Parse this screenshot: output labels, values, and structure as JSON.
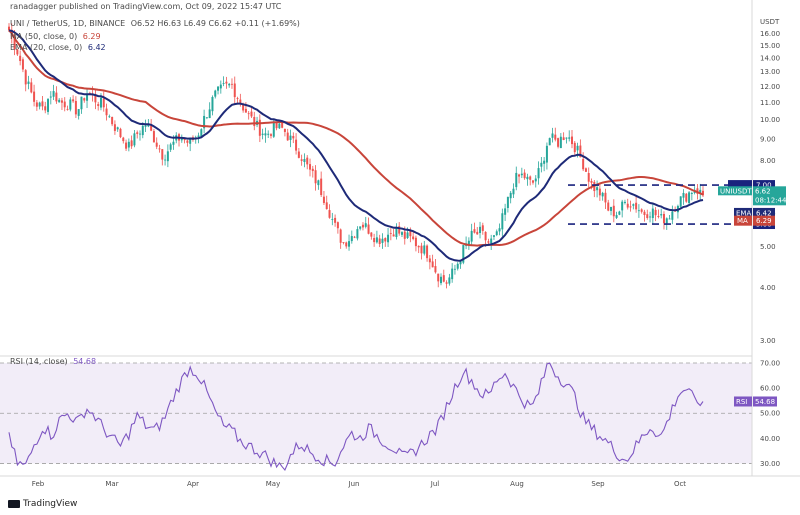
{
  "header": {
    "published": "ranadagger published on TradingView.com, Oct 09, 2022 15:47 UTC",
    "title": "UNI / TetherUS, 1D, BINANCE",
    "ohlc": "O6.52 H6.63 L6.49 C6.62 +0.11 (+1.69%)",
    "ma_label": "MA (50, close, 0)",
    "ma_value": "6.29",
    "ema_label": "EMA (20, close, 0)",
    "ema_value": "6.42",
    "rsi_label": "RSI (14, close)",
    "rsi_value": "54.68"
  },
  "logo": {
    "text": "TradingView"
  },
  "colors": {
    "up": "#26a69a",
    "down": "#ef5350",
    "ema": "#1e2a78",
    "ma": "#c8453a",
    "rsi": "#7e57c2",
    "level": "#1a237e"
  },
  "chart_data": [
    {
      "type": "candlestick",
      "title": "UNI / TetherUS, 1D, BINANCE",
      "y_unit": "USDT",
      "y_scale": "log",
      "ylim": [
        2.8,
        18
      ],
      "x_ticks": [
        "Feb",
        "Mar",
        "Apr",
        "May",
        "Jun",
        "Jul",
        "Aug",
        "Sep",
        "Oct"
      ],
      "y_ticks": [
        "16.00",
        "15.00",
        "14.00",
        "13.00",
        "12.00",
        "11.00",
        "10.00",
        "9.00",
        "8.00",
        "7.00",
        "6.00",
        "5.00",
        "4.00",
        "3.00"
      ],
      "series": [
        {
          "name": "UNIUSDT",
          "close_points": [
            16.3,
            14.5,
            12.4,
            11.0,
            10.6,
            11.7,
            11.0,
            10.9,
            10.5,
            11.6,
            11.2,
            10.8,
            9.9,
            9.2,
            8.6,
            9.3,
            9.8,
            9.0,
            8.2,
            8.7,
            9.1,
            8.8,
            9.2,
            10.3,
            11.4,
            11.9,
            12.1,
            11.0,
            10.2,
            9.6,
            9.2,
            9.6,
            9.5,
            8.9,
            8.3,
            7.6,
            7.1,
            6.4,
            5.6,
            5.1,
            5.3,
            5.7,
            5.5,
            5.2,
            5.3,
            5.5,
            5.3,
            5.2,
            5.0,
            4.8,
            4.3,
            4.1,
            4.4,
            4.9,
            5.3,
            5.4,
            5.1,
            5.3,
            6.2,
            7.2,
            7.4,
            7.0,
            7.6,
            9.1,
            8.8,
            9.3,
            8.7,
            7.9,
            7.0,
            6.7,
            6.1,
            6.0,
            6.4,
            6.3,
            6.0,
            6.1,
            5.8,
            5.9,
            6.4,
            6.6,
            6.9,
            6.62
          ]
        },
        {
          "name": "EMA (20, close, 0)",
          "value": 6.42
        },
        {
          "name": "MA (50, close, 0)",
          "value": 6.29
        }
      ],
      "levels": [
        {
          "label": "7.00",
          "value": 7.0
        },
        {
          "label": "5.66",
          "value": 5.66
        }
      ],
      "price_tags": [
        {
          "label": "UNIUSDT",
          "value": "6.62"
        },
        {
          "label": "",
          "value": "08:12:44"
        },
        {
          "label": "EMA",
          "value": "6.42"
        },
        {
          "label": "MA",
          "value": "6.29"
        }
      ]
    },
    {
      "type": "line",
      "title": "RSI (14, close)",
      "ylim": [
        25,
        72
      ],
      "y_ticks": [
        "70.00",
        "60.00",
        "50.00",
        "40.00",
        "30.00"
      ],
      "band": [
        30,
        70
      ],
      "series": [
        {
          "name": "RSI (14, close)",
          "values": [
            40,
            30,
            29,
            38,
            45,
            41,
            48,
            50,
            46,
            52,
            49,
            44,
            40,
            37,
            42,
            49,
            45,
            43,
            47,
            55,
            62,
            68,
            66,
            59,
            51,
            45,
            43,
            39,
            37,
            35,
            33,
            30,
            28,
            34,
            38,
            35,
            33,
            31,
            30,
            37,
            42,
            40,
            44,
            41,
            38,
            36,
            32,
            34,
            37,
            41,
            44,
            52,
            60,
            67,
            63,
            58,
            57,
            64,
            66,
            60,
            55,
            52,
            60,
            71,
            65,
            62,
            57,
            48,
            44,
            41,
            38,
            34,
            31,
            36,
            41,
            45,
            40,
            48,
            57,
            60,
            55,
            54.68
          ]
        }
      ],
      "current": "54.68"
    }
  ]
}
